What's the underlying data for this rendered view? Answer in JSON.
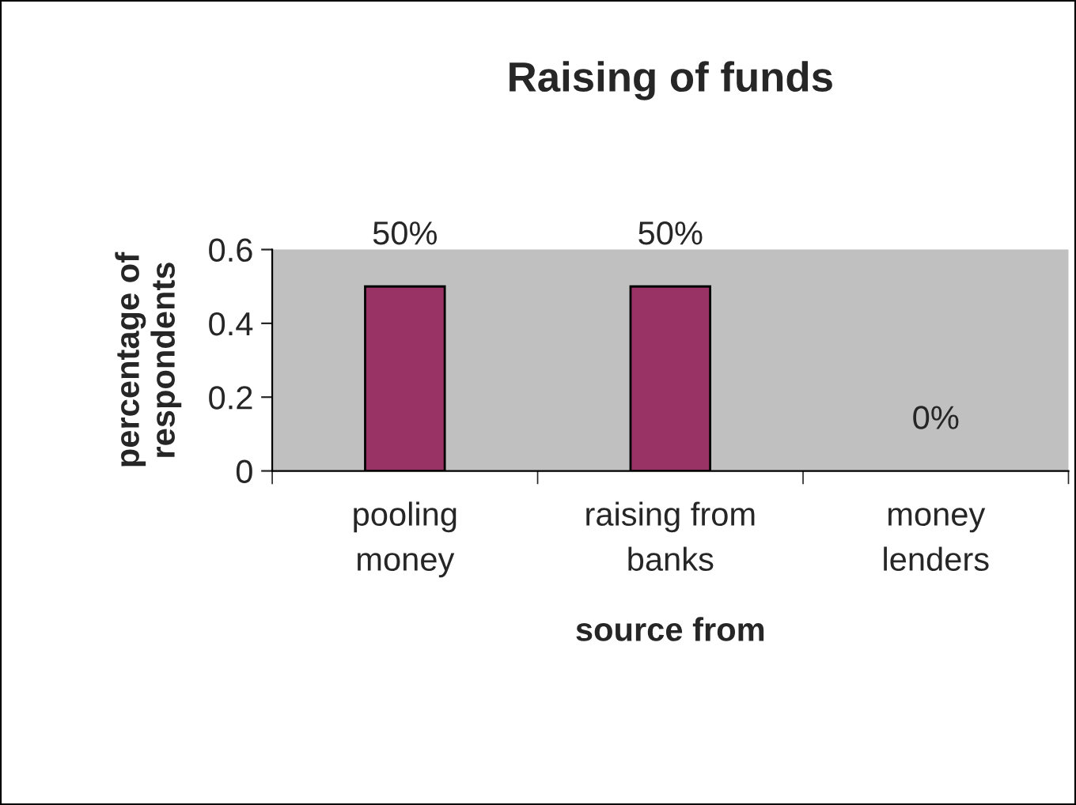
{
  "chart_data": {
    "type": "bar",
    "title": "Raising of funds",
    "xlabel": "source from",
    "ylabel": "percentage of respondents",
    "categories": [
      "pooling money",
      "raising from banks",
      "money lenders"
    ],
    "values": [
      0.5,
      0.5,
      0
    ],
    "value_labels": [
      "50%",
      "50%",
      "0%"
    ],
    "color": "#993366",
    "ylim": [
      0,
      0.6
    ],
    "yticks": [
      0,
      0.2,
      0.4,
      0.6
    ],
    "grid": false,
    "legend": false
  }
}
